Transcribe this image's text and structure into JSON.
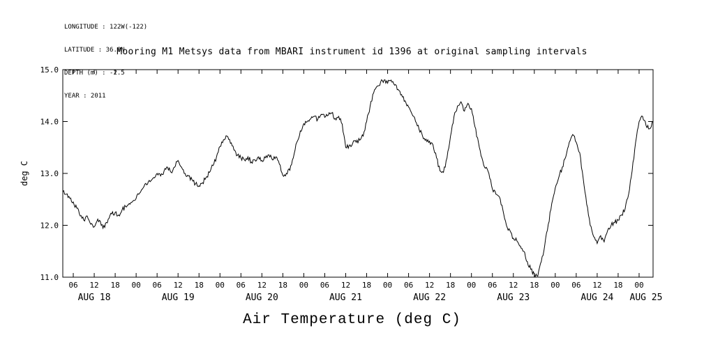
{
  "meta": {
    "longitude": "LONGITUDE : 122W(-122)",
    "latitude": "LATITUDE : 36.8N",
    "depth": "DEPTH (m) : -2.5",
    "year": "YEAR : 2011"
  },
  "title": "Mooring M1 Metsys data from MBARI instrument id 1396 at original sampling intervals",
  "chart_data": {
    "type": "line",
    "title": "Mooring M1 Metsys data from MBARI instrument id 1396 at original sampling intervals",
    "xlabel": "Air Temperature (deg C)",
    "ylabel": "deg C",
    "ylim": [
      11.0,
      15.0
    ],
    "y_tick_step": 1.0,
    "y_tick_labels": [
      "11.0",
      "12.0",
      "13.0",
      "14.0",
      "15.0"
    ],
    "x_range_hours": [
      3,
      172
    ],
    "x_tick_step_hours": 6,
    "x_tick_first_hour": 6,
    "x_tick_last_hour": 168,
    "x_tick_labels_cycle": [
      "00",
      "06",
      "12",
      "18"
    ],
    "day_labels": [
      {
        "label": "AUG 18",
        "hour": 12
      },
      {
        "label": "AUG 19",
        "hour": 36
      },
      {
        "label": "AUG 20",
        "hour": 60
      },
      {
        "label": "AUG 21",
        "hour": 84
      },
      {
        "label": "AUG 22",
        "hour": 108
      },
      {
        "label": "AUG 23",
        "hour": 132
      },
      {
        "label": "AUG 24",
        "hour": 156
      },
      {
        "label": "AUG 25",
        "hour": 170
      }
    ],
    "grid": false,
    "legend": "none",
    "line_color": "#000000",
    "noise_amplitude": 0.045,
    "series": [
      {
        "name": "air_temperature_degC",
        "x_start_hour": 3,
        "x_step_hours": 1,
        "values": [
          12.65,
          12.6,
          12.52,
          12.45,
          12.33,
          12.18,
          12.1,
          12.18,
          12.02,
          11.97,
          12.12,
          12.0,
          11.96,
          12.12,
          12.22,
          12.25,
          12.2,
          12.3,
          12.36,
          12.42,
          12.46,
          12.52,
          12.62,
          12.72,
          12.78,
          12.84,
          12.92,
          13.0,
          12.95,
          13.05,
          13.12,
          13.02,
          13.12,
          13.25,
          13.12,
          13.0,
          12.95,
          12.88,
          12.8,
          12.76,
          12.82,
          12.92,
          13.02,
          13.15,
          13.32,
          13.52,
          13.65,
          13.72,
          13.58,
          13.45,
          13.35,
          13.3,
          13.26,
          13.32,
          13.22,
          13.26,
          13.32,
          13.25,
          13.3,
          13.36,
          13.26,
          13.32,
          13.18,
          12.96,
          13.0,
          13.06,
          13.3,
          13.6,
          13.82,
          13.96,
          14.0,
          14.05,
          14.1,
          14.04,
          14.14,
          14.08,
          14.12,
          14.16,
          14.06,
          14.1,
          13.95,
          13.5,
          13.54,
          13.58,
          13.6,
          13.64,
          13.72,
          14.0,
          14.3,
          14.55,
          14.68,
          14.76,
          14.8,
          14.74,
          14.8,
          14.7,
          14.62,
          14.52,
          14.4,
          14.28,
          14.14,
          14.0,
          13.85,
          13.72,
          13.66,
          13.62,
          13.55,
          13.3,
          13.05,
          13.02,
          13.3,
          13.72,
          14.1,
          14.3,
          14.38,
          14.2,
          14.35,
          14.25,
          13.9,
          13.6,
          13.3,
          13.1,
          13.0,
          12.7,
          12.6,
          12.55,
          12.3,
          12.0,
          11.9,
          11.75,
          11.7,
          11.6,
          11.5,
          11.3,
          11.15,
          11.05,
          11.02,
          11.3,
          11.62,
          12.02,
          12.42,
          12.72,
          12.92,
          13.12,
          13.32,
          13.6,
          13.75,
          13.6,
          13.4,
          12.9,
          12.4,
          12.0,
          11.78,
          11.65,
          11.8,
          11.68,
          11.9,
          12.0,
          12.05,
          12.1,
          12.2,
          12.32,
          12.6,
          13.05,
          13.6,
          14.0,
          14.1,
          13.92,
          13.86,
          14.0
        ]
      }
    ]
  }
}
